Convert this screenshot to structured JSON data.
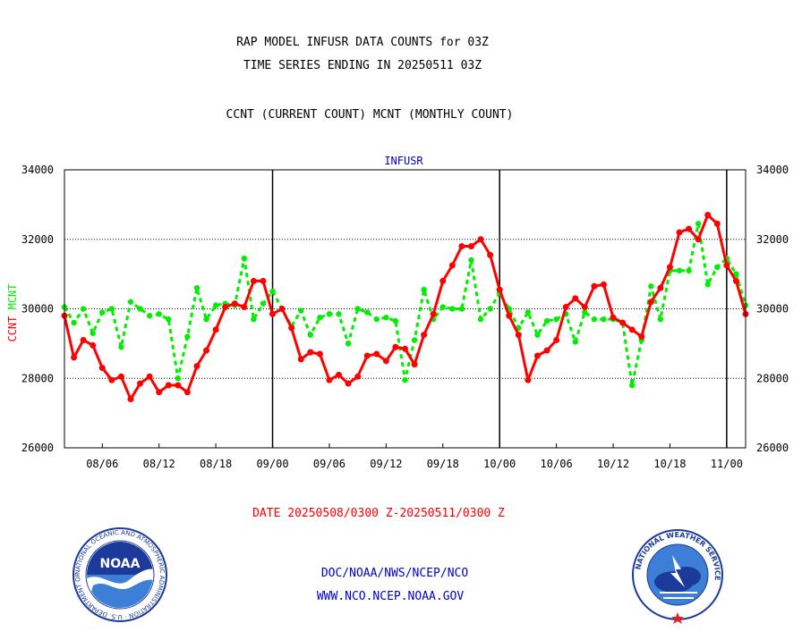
{
  "chart_data": {
    "type": "line",
    "title": [
      "RAP MODEL INFUSR DATA COUNTS for 03Z",
      "TIME SERIES ENDING IN 20250511 03Z"
    ],
    "subtitle": "CCNT (CURRENT COUNT) MCNT (MONTHLY COUNT)",
    "panel_label": "INFUSR",
    "ylabel_ccnt": "CCNT",
    "ylabel_mcnt": "MCNT",
    "ylim": [
      26000,
      34000
    ],
    "yticks": [
      "34000",
      "32000",
      "30000",
      "28000",
      "26000"
    ],
    "xlabels": [
      "08/06",
      "08/12",
      "08/18",
      "09/00",
      "09/06",
      "09/12",
      "09/18",
      "10/00",
      "10/06",
      "10/12",
      "10/18",
      "11/00"
    ],
    "date_range": "DATE 20250508/0300 Z-20250511/0300 Z",
    "grid": true,
    "n_points": 73,
    "series": [
      {
        "name": "CCNT",
        "color": "#ff0000",
        "values": [
          29800,
          28600,
          29100,
          28950,
          28300,
          27950,
          28050,
          27400,
          27850,
          28050,
          27600,
          27800,
          27800,
          27600,
          28350,
          28800,
          29400,
          30050,
          30150,
          30050,
          30800,
          30800,
          29850,
          30000,
          29450,
          28550,
          28750,
          28700,
          27950,
          28100,
          27850,
          28050,
          28650,
          28700,
          28500,
          28900,
          28850,
          28400,
          29250,
          29850,
          30800,
          31250,
          31800,
          31800,
          32000,
          31550,
          30550,
          29800,
          29250,
          27950,
          28650,
          28800,
          29100,
          30050,
          30300,
          30050,
          30650,
          30700,
          29750,
          29600,
          29400,
          29200,
          30200,
          30600,
          31200,
          32200,
          32300,
          32000,
          32700,
          32450,
          31250,
          30800,
          29850
        ]
      },
      {
        "name": "MCNT",
        "color": "#00ee00",
        "values": [
          30050,
          29600,
          30000,
          29300,
          29900,
          30000,
          28900,
          30200,
          30000,
          29800,
          29850,
          29700,
          28000,
          29200,
          30600,
          29700,
          30100,
          30150,
          30100,
          31450,
          29700,
          30150,
          30500,
          30000,
          29500,
          29950,
          29250,
          29750,
          29850,
          29850,
          29000,
          30000,
          29900,
          29700,
          29750,
          29650,
          27950,
          29100,
          30550,
          29700,
          30050,
          30000,
          30000,
          31400,
          29700,
          30000,
          30450,
          30000,
          29450,
          29900,
          29250,
          29650,
          29700,
          29850,
          29050,
          29900,
          29700,
          29700,
          29700,
          29600,
          27800,
          29100,
          30650,
          29700,
          31100,
          31100,
          31100,
          32450,
          30700,
          31200,
          31450,
          31000,
          30100
        ]
      }
    ]
  },
  "footer": {
    "line1": "DOC/NOAA/NWS/NCEP/NCO",
    "line2": "WWW.NCO.NCEP.NOAA.GOV"
  },
  "logos": {
    "noaa_text": "NOAA",
    "noaa_ring": "NATIONAL OCEANIC AND ATMOSPHERIC ADMINISTRATION · U.S. DEPARTMENT OF COMMERCE ·",
    "nws_ring": "NATIONAL WEATHER SERVICE"
  },
  "colors": {
    "ccnt": "#ff0000",
    "mcnt": "#00ee00",
    "text_blue": "#0000cc",
    "date_red": "#ff0000"
  }
}
